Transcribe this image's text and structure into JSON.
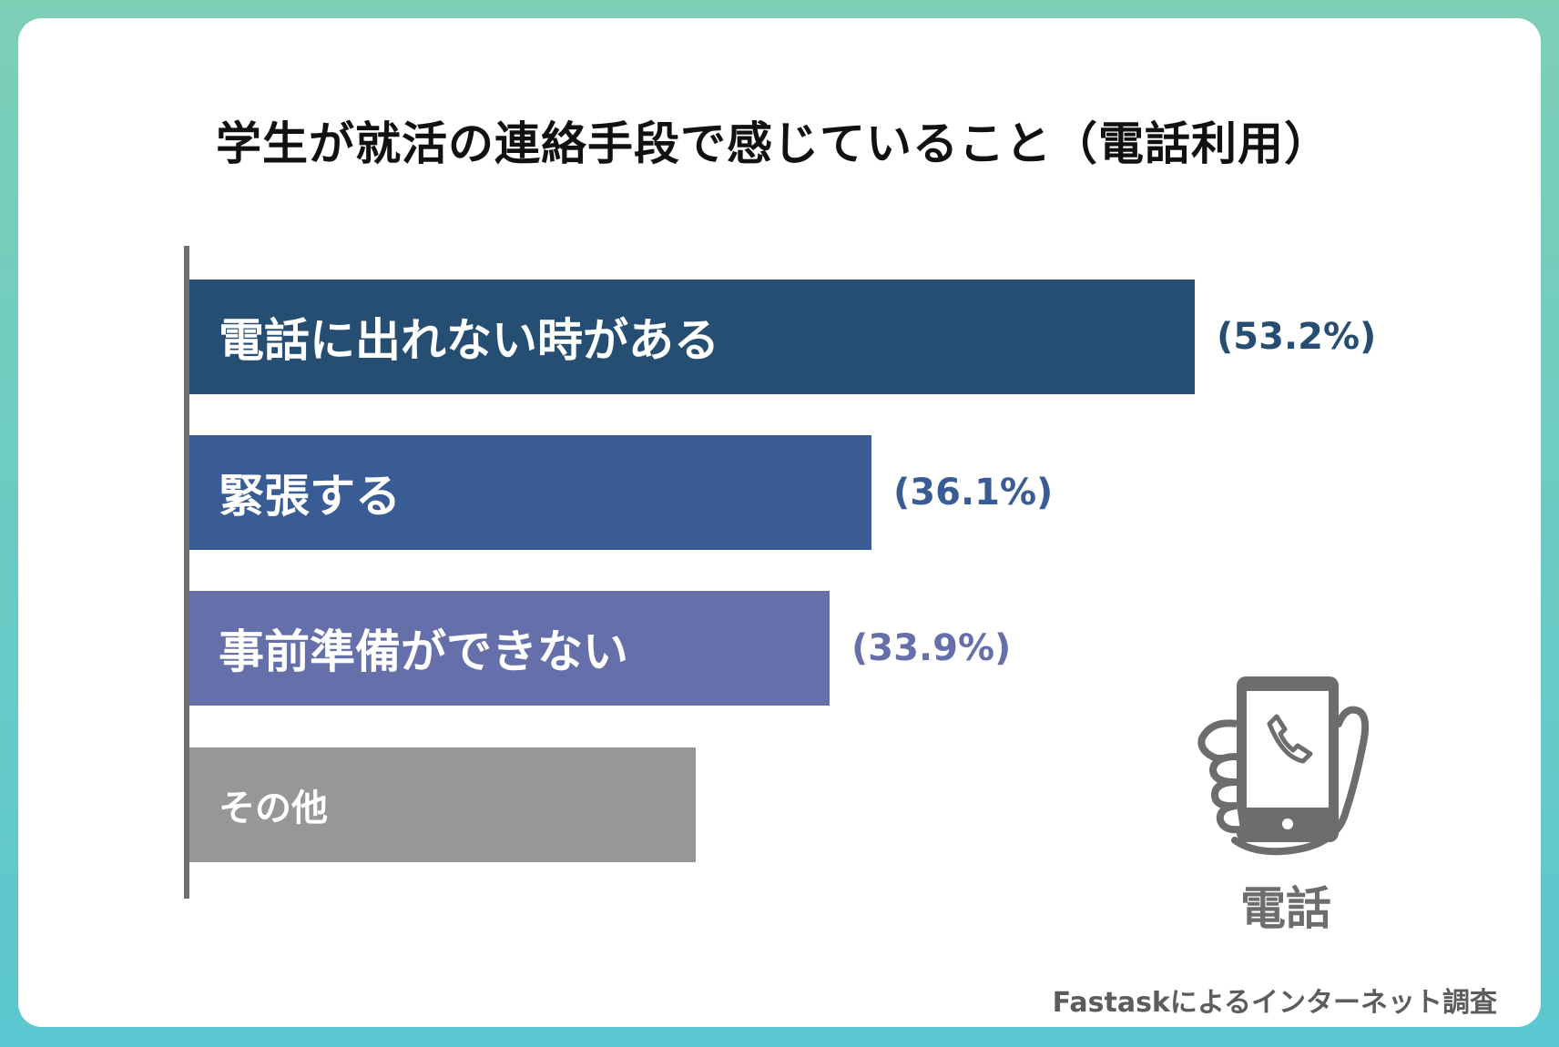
{
  "chart_data": {
    "type": "bar",
    "orientation": "horizontal",
    "title": "学生が就活の連絡手段で感じていること（電話利用）",
    "categories": [
      "電話に出れない時がある",
      "緊張する",
      "事前準備ができない",
      "その他"
    ],
    "values": [
      53.2,
      36.1,
      33.9,
      26.8
    ],
    "value_labels": [
      "(53.2%)",
      "(36.1%)",
      "(33.9%)",
      ""
    ],
    "colors": [
      "#264e73",
      "#3a5c94",
      "#6570aa",
      "#989696"
    ],
    "value_label_colors": [
      "#264e73",
      "#3a5c94",
      "#6570aa",
      "#989696"
    ],
    "xlim": [
      0,
      60
    ],
    "grid": false,
    "legend": "none"
  },
  "illustration": {
    "icon": "phone-in-hand-icon",
    "caption": "電話",
    "color": "#6d6d6d"
  },
  "source": "Fastaskによるインターネット調査"
}
